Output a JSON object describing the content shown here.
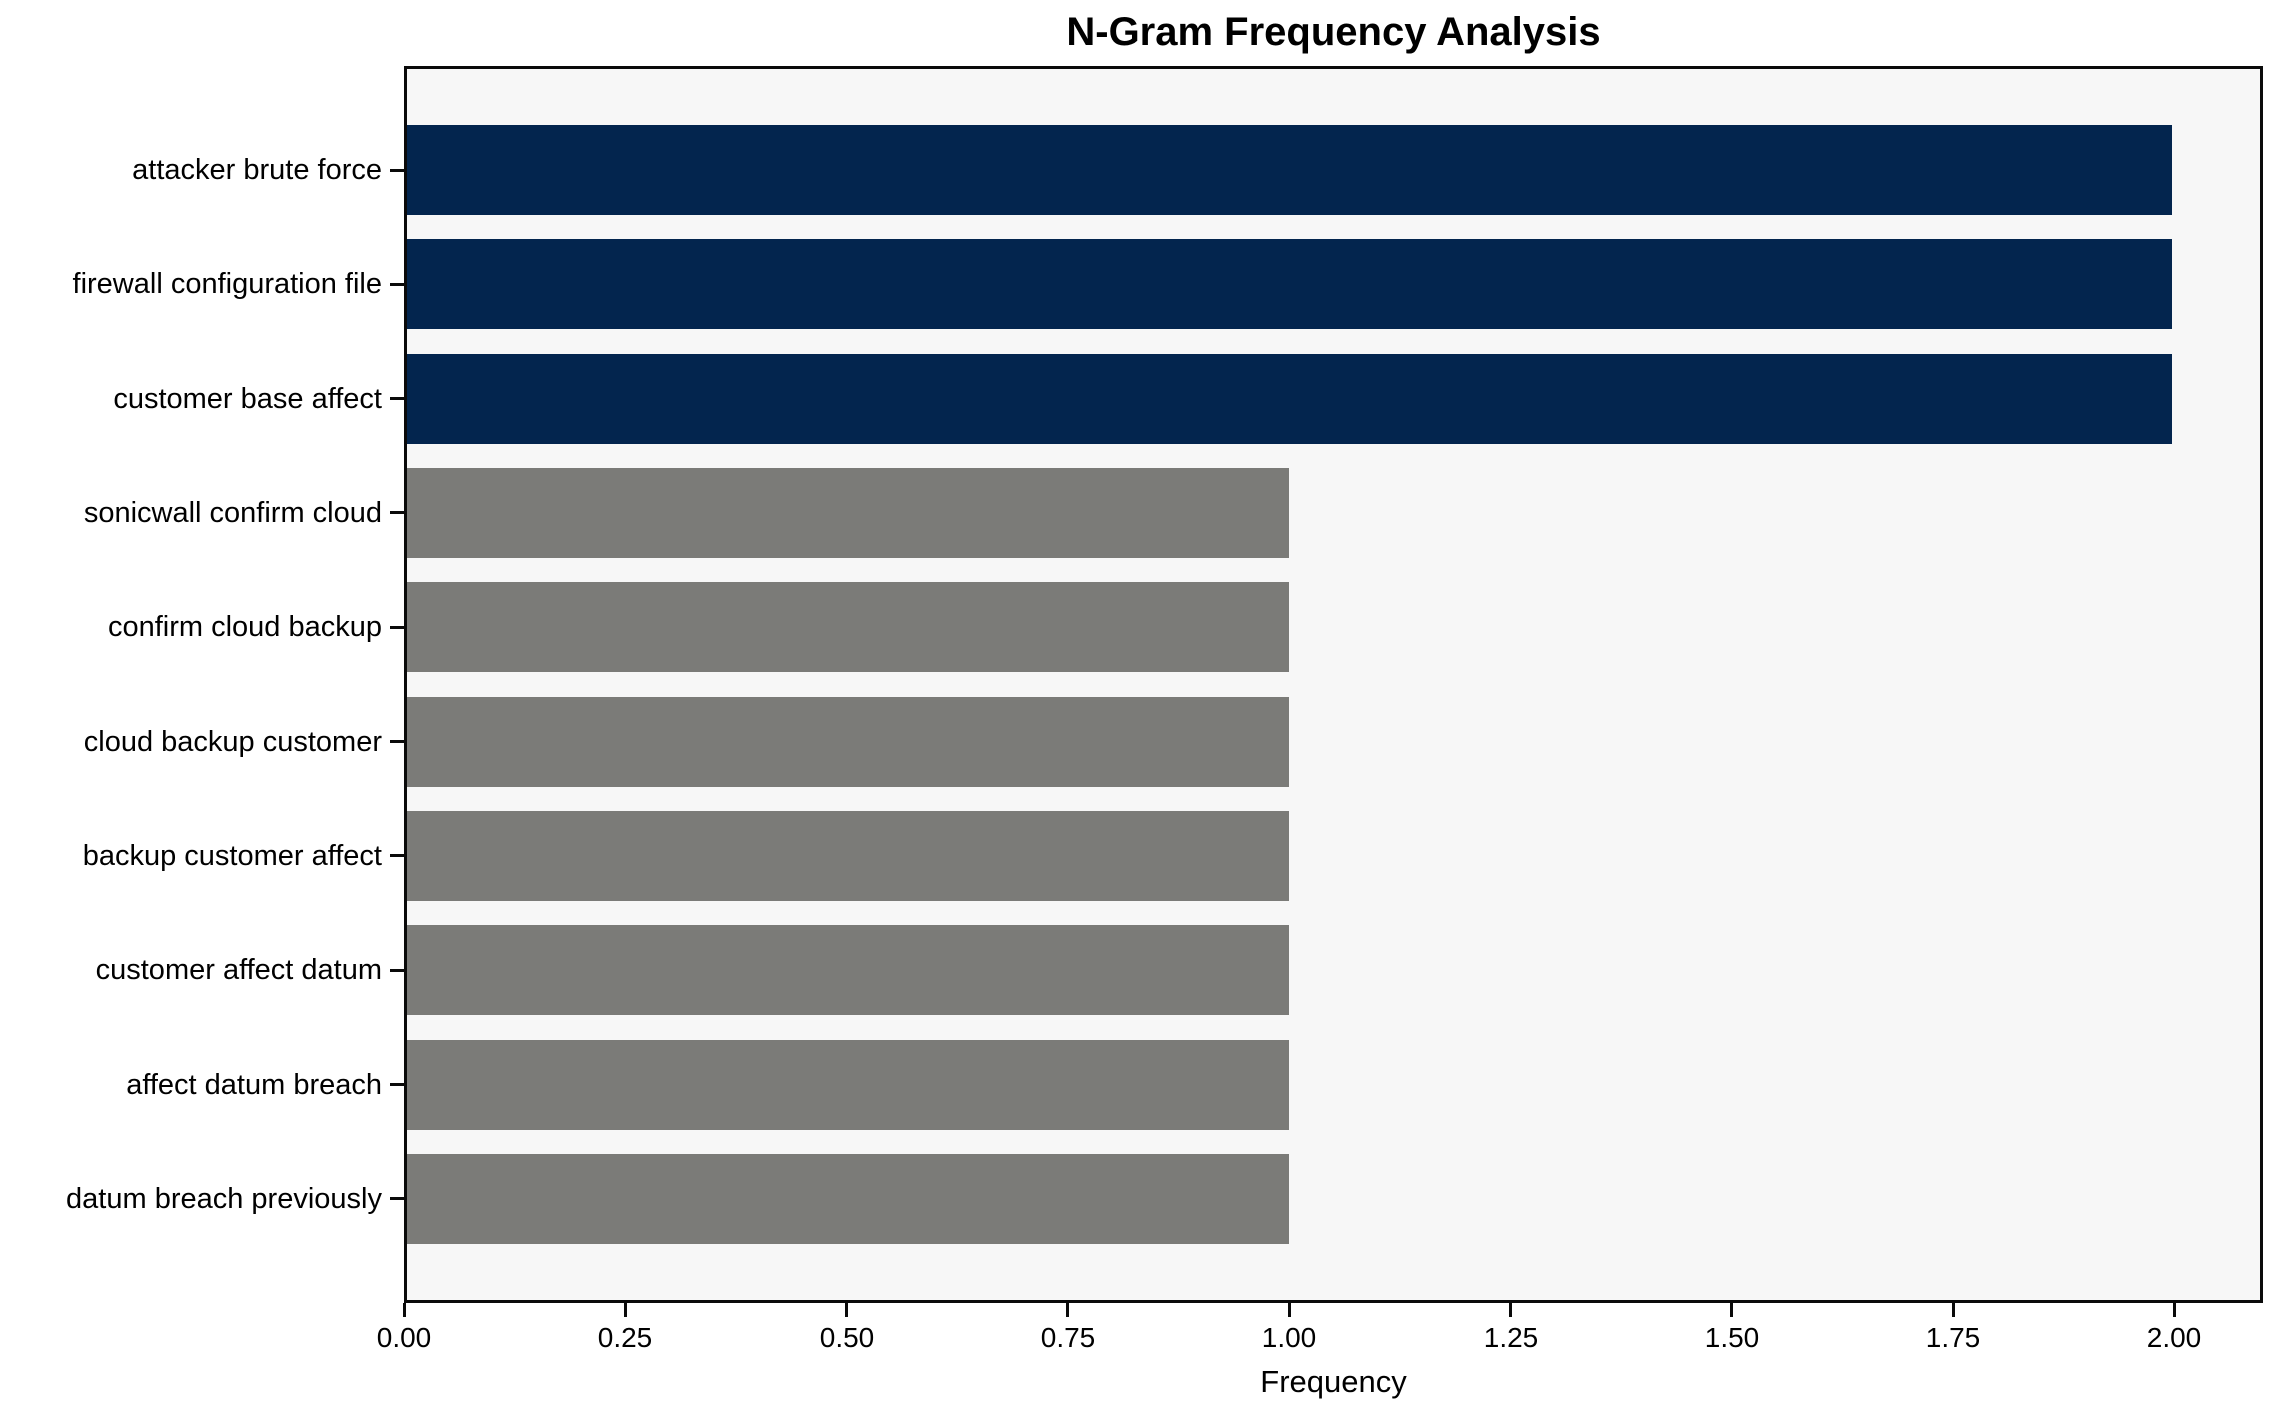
{
  "figure": {
    "title": "N-Gram Frequency Analysis",
    "xlabel": "Frequency"
  },
  "chart_data": {
    "type": "bar",
    "orientation": "horizontal",
    "title": "N-Gram Frequency Analysis",
    "xlabel": "Frequency",
    "ylabel": "",
    "categories": [
      "attacker brute force",
      "firewall configuration file",
      "customer base affect",
      "sonicwall confirm cloud",
      "confirm cloud backup",
      "cloud backup customer",
      "backup customer affect",
      "customer affect datum",
      "affect datum breach",
      "datum breach previously"
    ],
    "values": [
      2,
      2,
      2,
      1,
      1,
      1,
      1,
      1,
      1,
      1
    ],
    "bar_colors": [
      "#03254e",
      "#03254e",
      "#03254e",
      "#7b7b78",
      "#7b7b78",
      "#7b7b78",
      "#7b7b78",
      "#7b7b78",
      "#7b7b78",
      "#7b7b78"
    ],
    "highlight_color": "#03254e",
    "base_color": "#7b7b78",
    "xlim": [
      0,
      2.1
    ],
    "xticks": [
      0,
      0.25,
      0.5,
      0.75,
      1.0,
      1.25,
      1.5,
      1.75,
      2.0
    ],
    "xtick_labels": [
      "0.00",
      "0.25",
      "0.50",
      "0.75",
      "1.00",
      "1.25",
      "1.50",
      "1.75",
      "2.00"
    ],
    "grid": false,
    "legend": "none",
    "plot_background": "#f7f7f7",
    "spine_color": "#0a0a0a",
    "bar_height_fraction": 0.79
  }
}
